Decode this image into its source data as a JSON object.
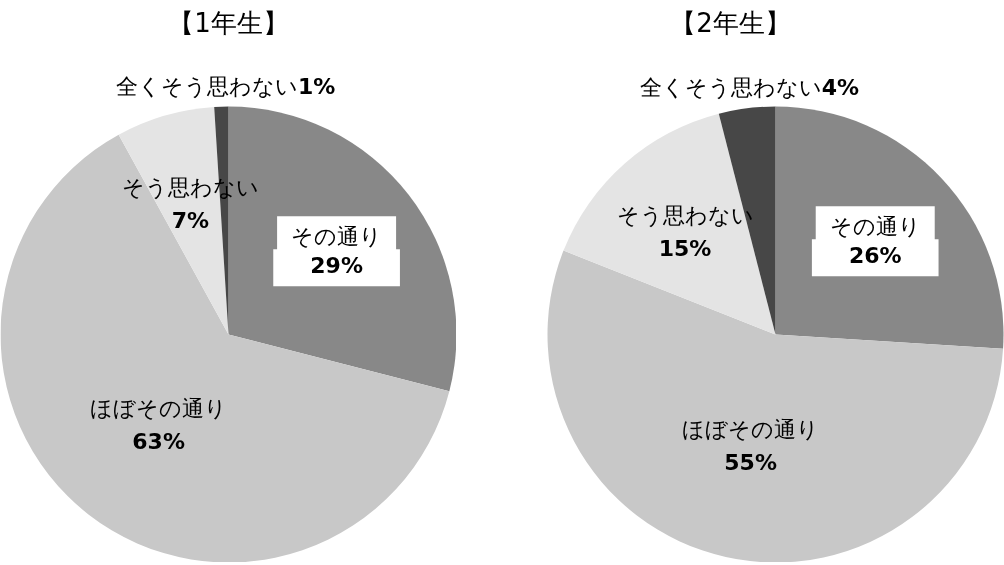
{
  "chart_data": [
    {
      "type": "pie",
      "title": "【1年生】",
      "categories": [
        "その通り",
        "ほぼその通り",
        "そう思わない",
        "全くそう思わない"
      ],
      "values": [
        29,
        63,
        7,
        1
      ],
      "colors": [
        "#888888",
        "#c8c8c8",
        "#e4e4e4",
        "#474747"
      ],
      "value_labels": [
        "29%",
        "63%",
        "7%",
        "1%"
      ]
    },
    {
      "type": "pie",
      "title": "【2年生】",
      "categories": [
        "その通り",
        "ほぼその通り",
        "そう思わない",
        "全くそう思わない"
      ],
      "values": [
        26,
        55,
        15,
        4
      ],
      "colors": [
        "#888888",
        "#c8c8c8",
        "#e4e4e4",
        "#474747"
      ],
      "value_labels": [
        "26%",
        "55%",
        "15%",
        "4%"
      ]
    }
  ]
}
